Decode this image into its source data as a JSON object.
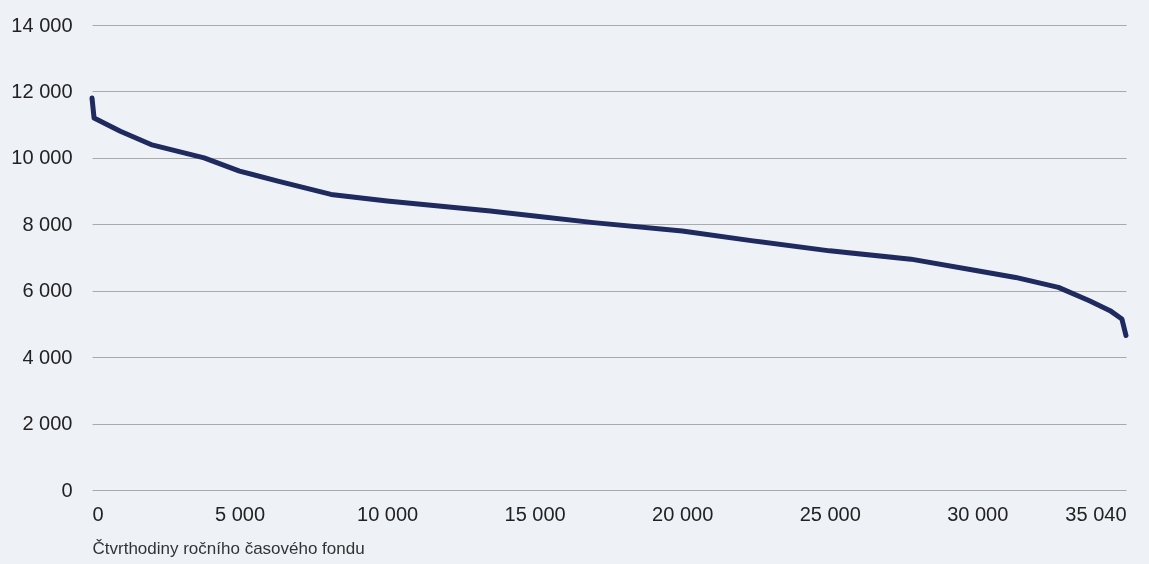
{
  "chart_data": {
    "type": "line",
    "xlabel": "Čtvrthodiny ročního časového fondu",
    "x": [
      0,
      70,
      960,
      2000,
      3800,
      5000,
      6300,
      8100,
      10000,
      13500,
      15000,
      17000,
      20000,
      22400,
      25000,
      27750,
      30000,
      31300,
      32750,
      33800,
      34500,
      34900,
      35040
    ],
    "series": [
      {
        "color": "#1f2a5e",
        "values": [
          11800,
          11200,
          10800,
          10400,
          10000,
          9600,
          9300,
          8900,
          8700,
          8400,
          8250,
          8050,
          7800,
          7500,
          7200,
          6950,
          6600,
          6400,
          6100,
          5700,
          5400,
          5150,
          4650
        ]
      }
    ],
    "xlim": [
      0,
      35040
    ],
    "xticks": [
      {
        "value": 0,
        "label": "0"
      },
      {
        "value": 5000,
        "label": "5 000"
      },
      {
        "value": 10000,
        "label": "10 000"
      },
      {
        "value": 15000,
        "label": "15 000"
      },
      {
        "value": 20000,
        "label": "20 000"
      },
      {
        "value": 25000,
        "label": "25 000"
      },
      {
        "value": 30000,
        "label": "30 000"
      },
      {
        "value": 35040,
        "label": "35 040"
      }
    ],
    "ylim": [
      0,
      14000
    ],
    "yticks": [
      {
        "value": 0,
        "label": "0"
      },
      {
        "value": 2000,
        "label": "2 000"
      },
      {
        "value": 4000,
        "label": "4 000"
      },
      {
        "value": 6000,
        "label": "6 000"
      },
      {
        "value": 8000,
        "label": "8 000"
      },
      {
        "value": 10000,
        "label": "10 000"
      },
      {
        "value": 12000,
        "label": "12 000"
      },
      {
        "value": 14000,
        "label": "14 000"
      }
    ],
    "grid": "y",
    "marker": "none",
    "line_style": "solid"
  }
}
